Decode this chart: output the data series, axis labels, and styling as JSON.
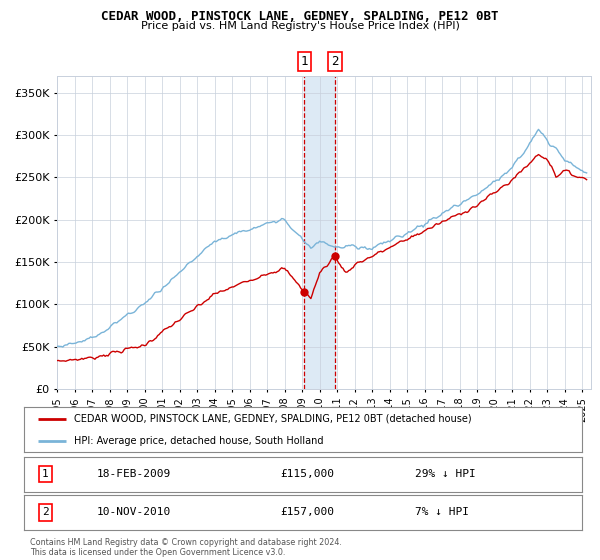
{
  "title": "CEDAR WOOD, PINSTOCK LANE, GEDNEY, SPALDING, PE12 0BT",
  "subtitle": "Price paid vs. HM Land Registry's House Price Index (HPI)",
  "legend_line1": "CEDAR WOOD, PINSTOCK LANE, GEDNEY, SPALDING, PE12 0BT (detached house)",
  "legend_line2": "HPI: Average price, detached house, South Holland",
  "table_row1_date": "18-FEB-2009",
  "table_row1_price": "£115,000",
  "table_row1_hpi": "29% ↓ HPI",
  "table_row2_date": "10-NOV-2010",
  "table_row2_price": "£157,000",
  "table_row2_hpi": "7% ↓ HPI",
  "copyright": "Contains HM Land Registry data © Crown copyright and database right 2024.\nThis data is licensed under the Open Government Licence v3.0.",
  "sale1_date_num": 2009.13,
  "sale1_price": 115000,
  "sale2_date_num": 2010.86,
  "sale2_price": 157000,
  "hpi_color": "#7ab4d8",
  "property_color": "#cc0000",
  "background_color": "#ffffff",
  "grid_color": "#c8d0dc",
  "shade_color": "#ddeaf5",
  "ylim": [
    0,
    370000
  ],
  "xlim_start": 1995.0,
  "xlim_end": 2025.5
}
